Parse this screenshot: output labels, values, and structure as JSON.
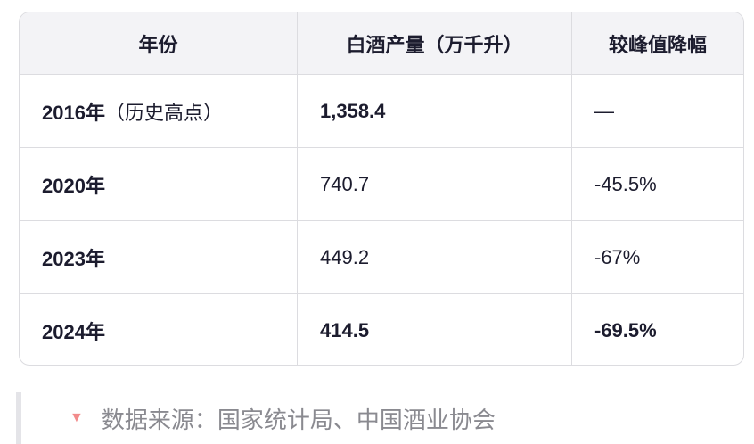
{
  "table": {
    "headers": [
      "年份",
      "白酒产量（万千升）",
      "较峰值降幅"
    ],
    "rows": [
      {
        "year": "2016年",
        "year_note": "（历史高点）",
        "output": "1,358.4",
        "decline": "—",
        "bold": true
      },
      {
        "year": "2020年",
        "year_note": "",
        "output": "740.7",
        "decline": "-45.5%",
        "bold": false
      },
      {
        "year": "2023年",
        "year_note": "",
        "output": "449.2",
        "decline": "-67%",
        "bold": false
      },
      {
        "year": "2024年",
        "year_note": "",
        "output": "414.5",
        "decline": "-69.5%",
        "bold": true
      }
    ]
  },
  "note": {
    "icon": "triangle-down-icon",
    "text": "数据来源：国家统计局、中国酒业协会",
    "icon_color": "#f28b8b"
  }
}
